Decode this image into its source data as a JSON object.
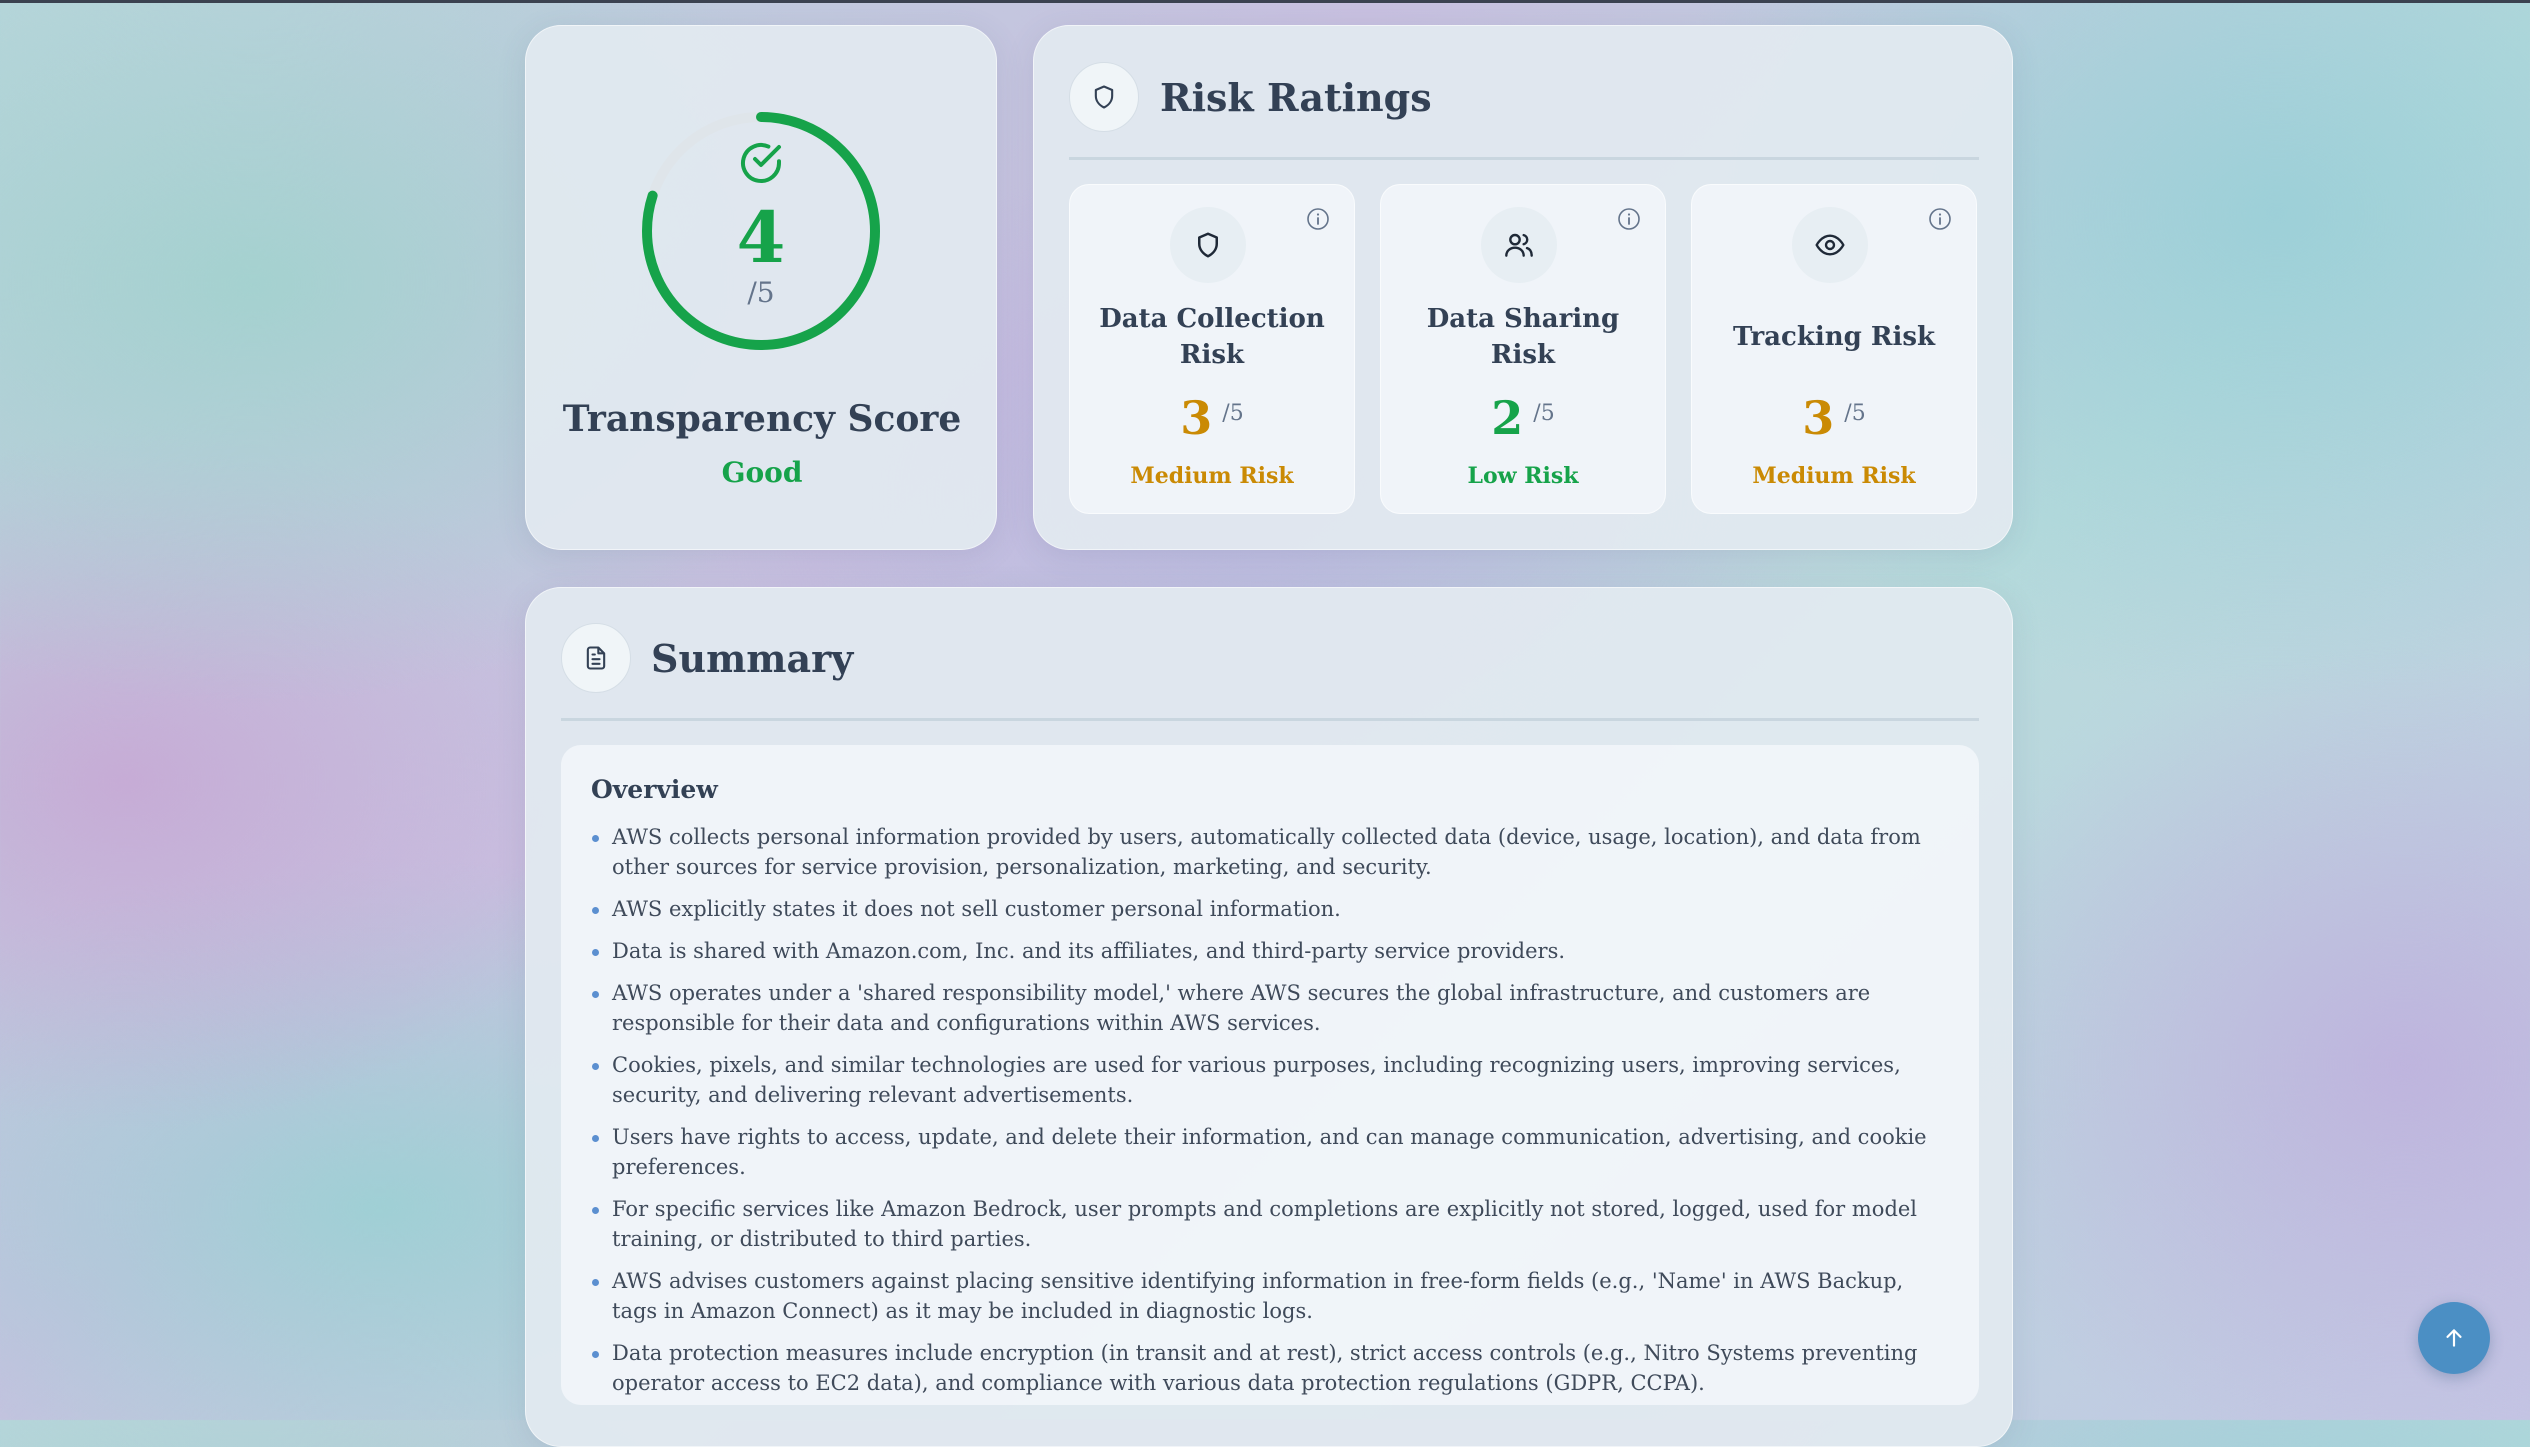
{
  "transparency": {
    "score": "4",
    "max": "/5",
    "value": 4,
    "out_of": 5,
    "title": "Transparency Score",
    "label": "Good",
    "icon": "check-circle-icon",
    "color": "#16a34a"
  },
  "risk_ratings": {
    "title": "Risk Ratings",
    "icon": "shield-icon",
    "items": [
      {
        "name": "Data Collection Risk",
        "score": "3",
        "max": "/5",
        "level": "Medium Risk",
        "icon": "shield-icon",
        "color": "#ca8a04"
      },
      {
        "name": "Data Sharing Risk",
        "score": "2",
        "max": "/5",
        "level": "Low Risk",
        "icon": "users-icon",
        "color": "#16a34a"
      },
      {
        "name": "Tracking Risk",
        "score": "3",
        "max": "/5",
        "level": "Medium Risk",
        "icon": "eye-icon",
        "color": "#ca8a04"
      }
    ]
  },
  "summary": {
    "title": "Summary",
    "icon": "document-icon",
    "overview_title": "Overview",
    "items": [
      "AWS collects personal information provided by users, automatically collected data (device, usage, location), and data from other sources for service provision, personalization, marketing, and security.",
      "AWS explicitly states it does not sell customer personal information.",
      "Data is shared with Amazon.com, Inc. and its affiliates, and third-party service providers.",
      "AWS operates under a 'shared responsibility model,' where AWS secures the global infrastructure, and customers are responsible for their data and configurations within AWS services.",
      "Cookies, pixels, and similar technologies are used for various purposes, including recognizing users, improving services, security, and delivering relevant advertisements.",
      "Users have rights to access, update, and delete their information, and can manage communication, advertising, and cookie preferences.",
      "For specific services like Amazon Bedrock, user prompts and completions are explicitly not stored, logged, used for model training, or distributed to third parties.",
      "AWS advises customers against placing sensitive identifying information in free-form fields (e.g., 'Name' in AWS Backup, tags in Amazon Connect) as it may be included in diagnostic logs.",
      "Data protection measures include encryption (in transit and at rest), strict access controls (e.g., Nitro Systems preventing operator access to EC2 data), and compliance with various data protection regulations (GDPR, CCPA)."
    ]
  },
  "scroll_top": {
    "icon": "arrow-up-icon",
    "color": "#4b8fc4"
  }
}
